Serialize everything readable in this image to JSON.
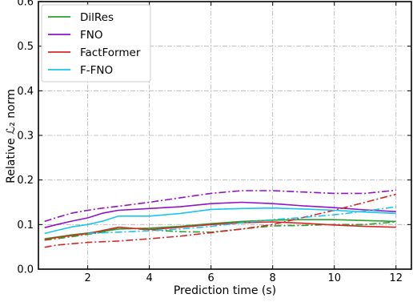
{
  "chart_data": {
    "type": "line",
    "title": "",
    "xlabel": "Prediction time (s)",
    "ylabel": "Relative ℒ₂ norm",
    "xlim": [
      0.4,
      12.5
    ],
    "ylim": [
      0.0,
      0.6
    ],
    "xticks": [
      2,
      4,
      6,
      8,
      10,
      12
    ],
    "yticks": [
      0.0,
      0.1,
      0.2,
      0.3,
      0.4,
      0.5,
      0.6
    ],
    "xtick_labels": [
      "2",
      "4",
      "6",
      "8",
      "10",
      "12"
    ],
    "ytick_labels": [
      "0.0",
      "0.1",
      "0.2",
      "0.3",
      "0.4",
      "0.5",
      "0.6"
    ],
    "grid": true,
    "legend_position": "top-left",
    "legend": [
      "DilRes",
      "FNO",
      "FactFormer",
      "F-FNO"
    ],
    "series": [
      {
        "name": "DilRes",
        "color": "#2ca02c",
        "style": "solid",
        "x": [
          0.6,
          1,
          1.5,
          2,
          2.5,
          3,
          3.5,
          4,
          5,
          6,
          7,
          8,
          9,
          10,
          11,
          12
        ],
        "y": [
          0.068,
          0.072,
          0.077,
          0.081,
          0.085,
          0.09,
          0.091,
          0.092,
          0.096,
          0.102,
          0.107,
          0.11,
          0.111,
          0.111,
          0.109,
          0.107
        ]
      },
      {
        "name": "DilRes",
        "color": "#2ca02c",
        "style": "dashdot",
        "x": [
          0.6,
          1,
          1.5,
          2,
          2.5,
          3,
          4,
          5,
          6,
          7,
          8,
          9,
          10,
          11,
          12
        ],
        "y": [
          0.065,
          0.068,
          0.073,
          0.078,
          0.083,
          0.094,
          0.088,
          0.084,
          0.083,
          0.09,
          0.097,
          0.098,
          0.1,
          0.1,
          0.106
        ]
      },
      {
        "name": "FNO",
        "color": "#9013c8",
        "style": "solid",
        "x": [
          0.6,
          1,
          1.5,
          2,
          2.5,
          3,
          4,
          5,
          6,
          7,
          8,
          9,
          10,
          11,
          12
        ],
        "y": [
          0.093,
          0.1,
          0.108,
          0.115,
          0.126,
          0.132,
          0.136,
          0.14,
          0.147,
          0.15,
          0.147,
          0.142,
          0.138,
          0.133,
          0.129
        ]
      },
      {
        "name": "FNO",
        "color": "#9013c8",
        "style": "dashdot",
        "x": [
          0.6,
          1,
          1.5,
          2,
          2.5,
          3,
          4,
          5,
          6,
          7,
          8,
          9,
          10,
          11,
          12
        ],
        "y": [
          0.107,
          0.116,
          0.126,
          0.132,
          0.137,
          0.141,
          0.15,
          0.16,
          0.17,
          0.176,
          0.176,
          0.173,
          0.17,
          0.17,
          0.177
        ]
      },
      {
        "name": "FactFormer",
        "color": "#d62728",
        "style": "solid",
        "x": [
          0.6,
          1,
          2,
          3,
          4,
          5,
          6,
          7,
          8,
          9,
          10,
          11,
          12
        ],
        "y": [
          0.066,
          0.071,
          0.08,
          0.094,
          0.089,
          0.094,
          0.1,
          0.104,
          0.106,
          0.103,
          0.099,
          0.096,
          0.094
        ]
      },
      {
        "name": "FactFormer",
        "color": "#d62728",
        "style": "dashdot",
        "x": [
          0.6,
          1,
          2,
          3,
          4,
          5,
          6,
          7,
          8,
          9,
          10,
          11,
          12
        ],
        "y": [
          0.049,
          0.054,
          0.06,
          0.063,
          0.068,
          0.074,
          0.082,
          0.09,
          0.1,
          0.116,
          0.132,
          0.15,
          0.168
        ]
      },
      {
        "name": "F-FNO",
        "color": "#18c5ee",
        "style": "solid",
        "x": [
          0.6,
          1,
          1.5,
          2,
          2.5,
          3,
          3.5,
          4,
          5,
          6,
          7,
          8,
          9,
          10,
          11,
          12
        ],
        "y": [
          0.08,
          0.087,
          0.095,
          0.1,
          0.108,
          0.119,
          0.119,
          0.119,
          0.125,
          0.134,
          0.136,
          0.137,
          0.135,
          0.132,
          0.128,
          0.125
        ]
      },
      {
        "name": "F-FNO",
        "color": "#18c5ee",
        "style": "dashdot",
        "x": [
          2,
          3,
          4,
          5,
          6,
          7,
          8,
          9,
          10,
          11,
          12
        ],
        "y": [
          0.08,
          0.083,
          0.086,
          0.09,
          0.096,
          0.104,
          0.111,
          0.116,
          0.122,
          0.13,
          0.14
        ]
      }
    ]
  }
}
